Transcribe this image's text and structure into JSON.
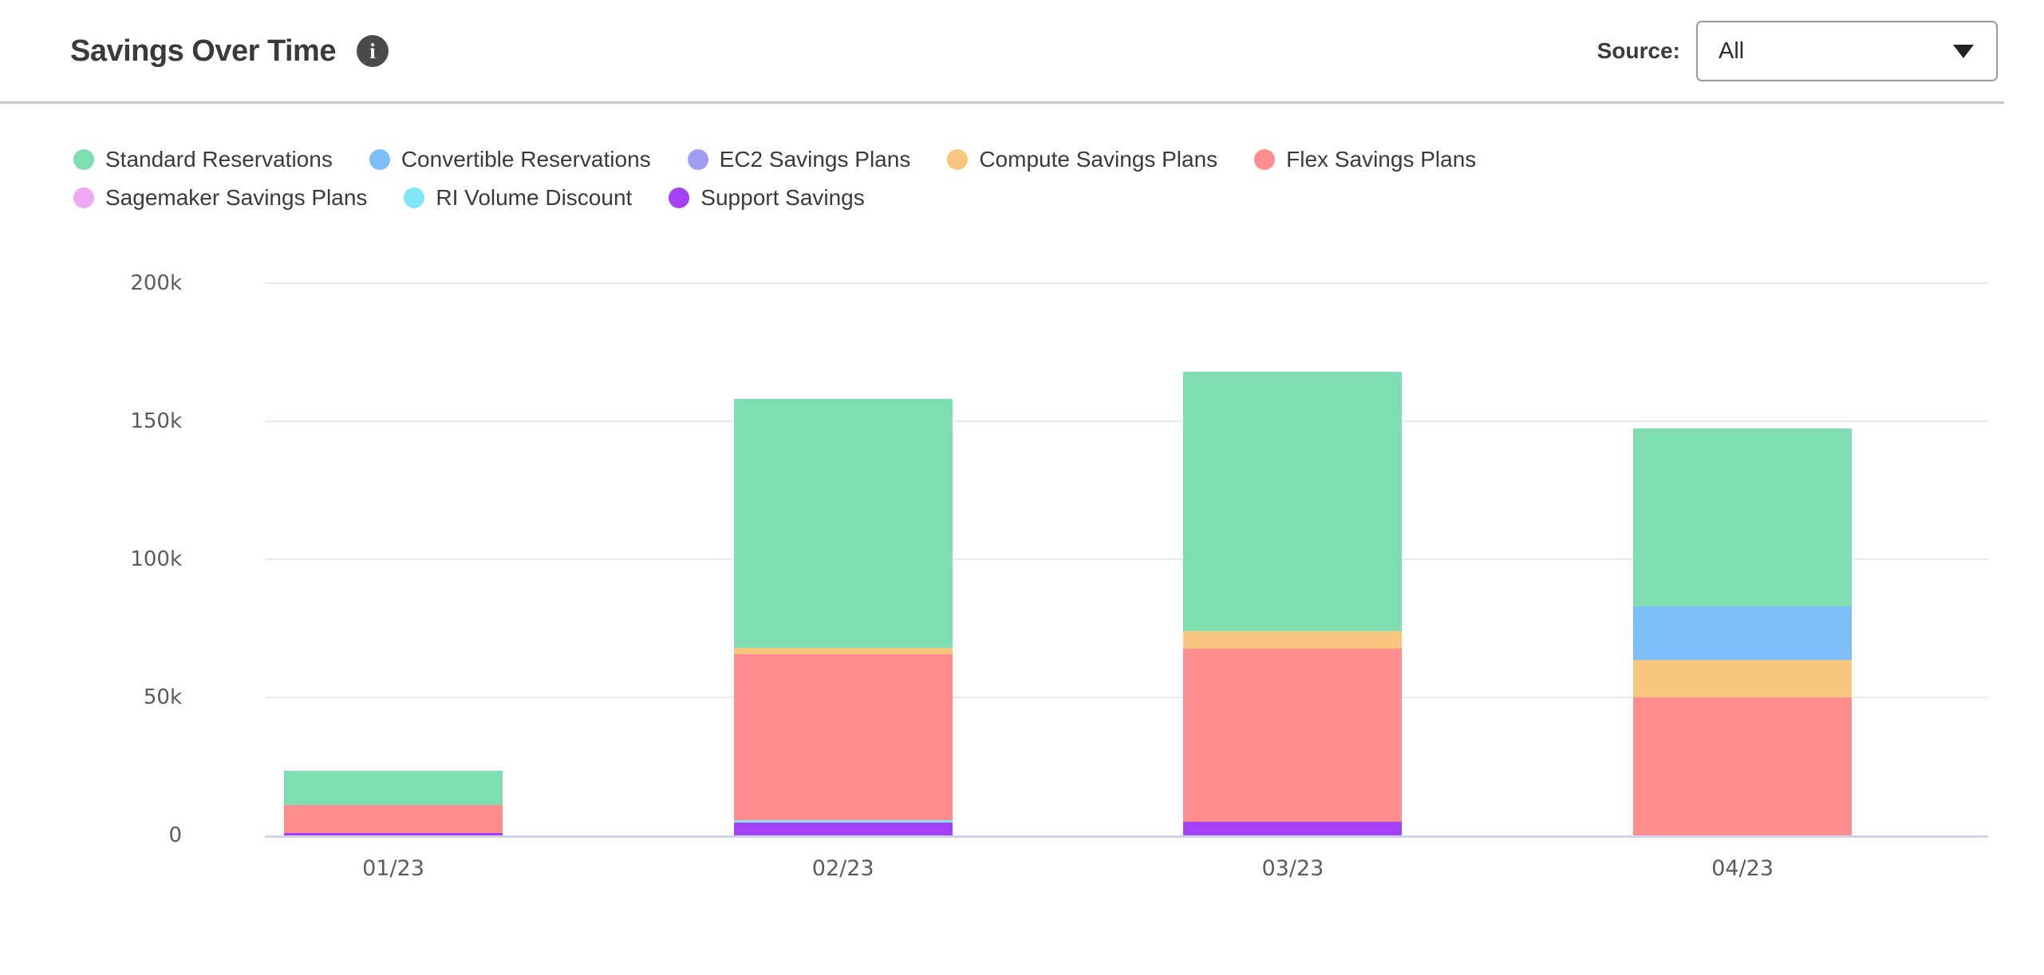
{
  "header": {
    "title": "Savings Over Time",
    "info_icon_glyph": "i",
    "source_label": "Source:",
    "source_value": "All"
  },
  "chart_data": {
    "type": "bar",
    "stacked": true,
    "title": "Savings Over Time",
    "categories": [
      "01/23",
      "02/23",
      "03/23",
      "04/23"
    ],
    "series": [
      {
        "name": "Standard Reservations",
        "color": "#7eddb1",
        "values": [
          12500,
          90000,
          94000,
          64500
        ]
      },
      {
        "name": "Convertible Reservations",
        "color": "#7dbdfa",
        "values": [
          0,
          0,
          0,
          19500
        ]
      },
      {
        "name": "EC2 Savings Plans",
        "color": "#a19df4",
        "values": [
          0,
          0,
          0,
          0
        ]
      },
      {
        "name": "Compute Savings Plans",
        "color": "#f9c67f",
        "values": [
          0,
          2500,
          6500,
          13500
        ]
      },
      {
        "name": "Flex Savings Plans",
        "color": "#ff8d8d",
        "values": [
          10000,
          60000,
          62500,
          50000
        ]
      },
      {
        "name": "Sagemaker Savings Plans",
        "color": "#f1a7f3",
        "values": [
          0,
          0,
          0,
          0
        ]
      },
      {
        "name": "RI Volume Discount",
        "color": "#80e5f8",
        "values": [
          0,
          1000,
          0,
          0
        ]
      },
      {
        "name": "Support Savings",
        "color": "#a440f6",
        "values": [
          1000,
          4500,
          5000,
          0
        ]
      }
    ],
    "stack_order_bottom_to_top": [
      "Support Savings",
      "RI Volume Discount",
      "Flex Savings Plans",
      "Compute Savings Plans",
      "Sagemaker Savings Plans",
      "EC2 Savings Plans",
      "Convertible Reservations",
      "Standard Reservations"
    ],
    "totals_by_category": [
      23500,
      158000,
      168000,
      147500
    ],
    "y_ticks": [
      "0",
      "50k",
      "100k",
      "150k",
      "200k"
    ],
    "ylim": [
      0,
      200000
    ],
    "grid": "horizontal",
    "legend_position": "top-left",
    "axis_colors": {
      "gridline": "#e9e9e9",
      "baseline": "#ccd4ed"
    }
  }
}
